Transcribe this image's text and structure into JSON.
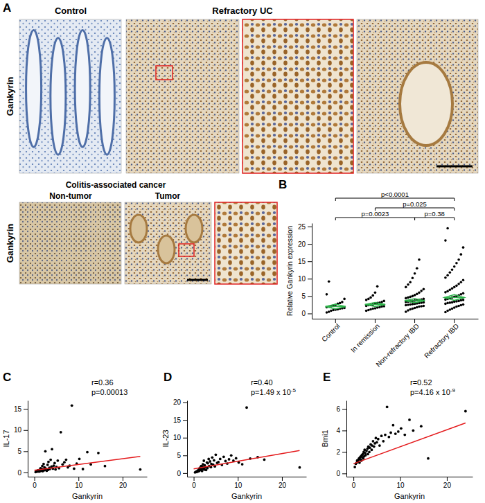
{
  "panel_a": {
    "label": "A",
    "top_row": {
      "row_label": "Gankyrin",
      "column_titles": [
        "Control",
        "Refractory UC"
      ]
    },
    "bottom_row": {
      "row_label": "Gankyrin",
      "title": "Colitis-associated cancer",
      "column_titles": [
        "Non-tumor",
        "Tumor"
      ]
    }
  },
  "chart_data": [
    {
      "type": "dot",
      "panel_label": "B",
      "y_label": "Relative Gankyrin expression",
      "categories": [
        "Control",
        "In remission",
        "Non-refractory IBD",
        "Refractory IBD"
      ],
      "values": [
        [
          0.3,
          0.5,
          0.8,
          1.0,
          1.1,
          1.2,
          1.4,
          1.5,
          1.6,
          1.8,
          2.0,
          2.1,
          2.3,
          2.5,
          2.8,
          3.0,
          3.3,
          4.2,
          5.5,
          9.2
        ],
        [
          0.8,
          1.0,
          1.2,
          1.4,
          1.5,
          1.7,
          1.8,
          2.0,
          2.1,
          2.2,
          2.4,
          2.5,
          2.6,
          2.8,
          3.0,
          3.1,
          3.3,
          3.6,
          3.9,
          4.2,
          4.6,
          5.2,
          6.0,
          7.8
        ],
        [
          0.5,
          0.9,
          1.2,
          1.4,
          1.6,
          1.8,
          2.0,
          2.1,
          2.2,
          2.4,
          2.5,
          2.6,
          2.7,
          2.8,
          2.9,
          3.0,
          3.1,
          3.2,
          3.3,
          3.4,
          3.5,
          3.6,
          3.7,
          3.8,
          3.9,
          4.0,
          4.2,
          4.4,
          4.6,
          4.8,
          5.0,
          5.3,
          5.6,
          6.0,
          6.5,
          7.0,
          7.6,
          8.3,
          9.0,
          10.2,
          11.5,
          13.0,
          15.5
        ],
        [
          0.4,
          0.8,
          1.1,
          1.4,
          1.7,
          2.0,
          2.2,
          2.4,
          2.6,
          2.8,
          3.0,
          3.1,
          3.2,
          3.4,
          3.5,
          3.6,
          3.8,
          3.9,
          4.0,
          4.2,
          4.4,
          4.6,
          4.8,
          5.0,
          5.2,
          5.5,
          5.8,
          6.1,
          6.4,
          6.8,
          7.2,
          7.6,
          8.0,
          8.5,
          9.0,
          9.6,
          10.3,
          11.0,
          11.8,
          12.6,
          13.5,
          14.5,
          15.5,
          17.0,
          19.0,
          21.0,
          24.5
        ]
      ],
      "color": "#000000",
      "means": [
        2.0,
        2.6,
        3.7,
        4.6
      ],
      "ci_low": [
        1.3,
        2.0,
        3.1,
        3.8
      ],
      "ci_high": [
        2.7,
        3.2,
        4.3,
        5.4
      ],
      "mean_color": "#2db34a",
      "comparisons": [
        {
          "from": 0,
          "to": 2,
          "label": "p=0.0023"
        },
        {
          "from": 2,
          "to": 3,
          "label": "p=0.38"
        },
        {
          "from": 1,
          "to": 3,
          "label": "p=0.025"
        },
        {
          "from": 0,
          "to": 3,
          "label": "p<0.0001"
        }
      ],
      "ylim": [
        -1.5,
        26
      ],
      "yticks": [
        0,
        5,
        10,
        15,
        20,
        25
      ]
    },
    {
      "type": "scatter",
      "panel_label": "C",
      "x_label": "Gankyrin",
      "y_label": "IL-17",
      "r_label": "r=0.36",
      "p_label": "p=0.00013",
      "x": [
        0.3,
        0.5,
        0.7,
        0.8,
        1.0,
        1.1,
        1.2,
        1.3,
        1.4,
        1.5,
        1.6,
        1.7,
        1.8,
        1.9,
        2.0,
        2.1,
        2.2,
        2.3,
        2.4,
        2.5,
        2.6,
        2.8,
        3.0,
        3.1,
        3.2,
        3.4,
        3.5,
        3.7,
        3.9,
        4.0,
        4.2,
        4.4,
        4.6,
        4.8,
        5.0,
        5.3,
        5.6,
        6.0,
        6.4,
        6.8,
        7.2,
        7.6,
        8.0,
        8.5,
        9.0,
        9.6,
        10.2,
        11.0,
        12.0,
        12.8,
        14.5,
        16.0,
        24.0
      ],
      "y": [
        0.1,
        0.3,
        0.2,
        0.5,
        0.4,
        0.2,
        0.6,
        0.3,
        1.0,
        0.5,
        0.4,
        0.8,
        1.5,
        0.3,
        0.7,
        2.0,
        0.5,
        1.2,
        0.6,
        5.0,
        0.9,
        0.4,
        1.8,
        0.6,
        2.5,
        1.1,
        0.8,
        3.0,
        1.4,
        5.5,
        0.9,
        1.6,
        2.2,
        0.7,
        1.3,
        2.8,
        1.0,
        9.5,
        1.9,
        2.4,
        3.0,
        1.2,
        1.6,
        15.8,
        0.9,
        2.1,
        3.2,
        0.8,
        4.8,
        1.9,
        4.6,
        1.5,
        0.7
      ],
      "color": "#000000",
      "fit_x": [
        0,
        24
      ],
      "fit_y": [
        0.5,
        3.8
      ],
      "fit_color": "#e41a1c",
      "xlim": [
        -1.5,
        25.5
      ],
      "ylim": [
        -1,
        17
      ],
      "xticks": [
        0,
        10,
        20
      ],
      "yticks": [
        0,
        5,
        10,
        15
      ]
    },
    {
      "type": "scatter",
      "panel_label": "D",
      "x_label": "Gankyrin",
      "y_label": "IL-23",
      "r_label": "r=0.40",
      "p_label": "p=1.49 x 10",
      "p_exponent": "-5",
      "x": [
        0.3,
        0.5,
        0.7,
        0.8,
        1.0,
        1.1,
        1.2,
        1.3,
        1.4,
        1.5,
        1.6,
        1.7,
        1.8,
        1.9,
        2.0,
        2.1,
        2.2,
        2.3,
        2.4,
        2.5,
        2.6,
        2.8,
        3.0,
        3.1,
        3.2,
        3.4,
        3.5,
        3.7,
        3.9,
        4.0,
        4.2,
        4.4,
        4.6,
        4.8,
        5.0,
        5.3,
        5.6,
        6.0,
        6.4,
        6.8,
        7.2,
        7.6,
        8.0,
        8.5,
        9.0,
        9.6,
        10.2,
        11.0,
        12.0,
        12.8,
        14.5,
        16.0,
        24.0
      ],
      "y": [
        0.2,
        0.4,
        0.3,
        0.6,
        0.8,
        0.5,
        1.0,
        0.7,
        1.5,
        0.9,
        1.2,
        2.0,
        1.1,
        0.6,
        1.8,
        2.5,
        1.3,
        3.5,
        1.0,
        2.2,
        1.6,
        0.9,
        3.0,
        1.4,
        2.8,
        4.0,
        2.0,
        3.3,
        1.7,
        2.6,
        4.4,
        2.4,
        3.6,
        1.9,
        5.2,
        2.9,
        3.1,
        4.0,
        2.3,
        4.6,
        3.4,
        2.7,
        3.9,
        5.0,
        3.5,
        4.2,
        3.0,
        2.5,
        18.5,
        4.1,
        4.5,
        3.8,
        1.6
      ],
      "color": "#000000",
      "fit_x": [
        0,
        24
      ],
      "fit_y": [
        1.2,
        6.4
      ],
      "fit_color": "#e41a1c",
      "xlim": [
        -1.5,
        25.5
      ],
      "ylim": [
        -1,
        20.5
      ],
      "xticks": [
        0,
        10,
        20
      ],
      "yticks": [
        0,
        5,
        10,
        15,
        20
      ]
    },
    {
      "type": "scatter",
      "panel_label": "E",
      "x_label": "Gankyrin",
      "y_label": "Bmi1",
      "r_label": "r=0.52",
      "p_label": "p=4.16 x 10",
      "p_exponent": "-9",
      "x": [
        0.3,
        0.5,
        0.7,
        0.8,
        1.0,
        1.1,
        1.2,
        1.3,
        1.4,
        1.5,
        1.6,
        1.7,
        1.8,
        1.9,
        2.0,
        2.1,
        2.2,
        2.3,
        2.4,
        2.5,
        2.6,
        2.8,
        3.0,
        3.1,
        3.2,
        3.4,
        3.5,
        3.7,
        3.9,
        4.0,
        4.2,
        4.4,
        4.6,
        4.8,
        5.0,
        5.3,
        5.6,
        6.0,
        6.4,
        6.8,
        7.2,
        7.6,
        8.0,
        8.5,
        9.0,
        9.6,
        10.2,
        11.0,
        12.0,
        12.8,
        14.5,
        16.0,
        24.0
      ],
      "y": [
        0.6,
        0.9,
        1.0,
        1.2,
        1.1,
        1.3,
        1.4,
        1.0,
        1.5,
        1.3,
        1.6,
        1.2,
        1.7,
        1.5,
        1.8,
        1.4,
        2.0,
        1.6,
        2.2,
        1.9,
        1.7,
        2.1,
        2.3,
        1.8,
        2.5,
        2.0,
        2.4,
        2.7,
        2.2,
        2.6,
        3.0,
        2.5,
        2.8,
        3.3,
        2.9,
        3.2,
        2.6,
        3.5,
        3.0,
        3.6,
        6.2,
        3.4,
        3.8,
        4.5,
        3.7,
        3.9,
        4.2,
        3.6,
        5.0,
        4.0,
        4.4,
        1.4,
        5.8
      ],
      "color": "#000000",
      "fit_x": [
        0,
        24
      ],
      "fit_y": [
        0.9,
        4.7
      ],
      "fit_color": "#e41a1c",
      "xlim": [
        -1.5,
        25.5
      ],
      "ylim": [
        -0.3,
        6.8
      ],
      "xticks": [
        0,
        10,
        20
      ],
      "yticks": [
        0,
        2,
        4,
        6
      ]
    }
  ]
}
